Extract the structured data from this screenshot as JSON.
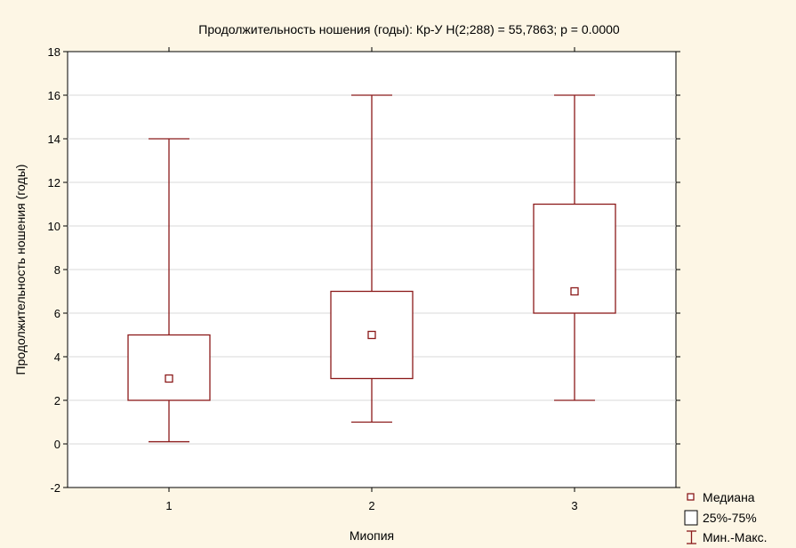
{
  "chart_data": {
    "type": "box",
    "title": "Продолжительность ношения (годы):  Кр-У H(2;288) = 55,7863; p = 0.0000",
    "xlabel": "Миопия",
    "ylabel": "Продолжительность ношения (годы)",
    "ylim": [
      -2,
      18
    ],
    "yticks": [
      -2,
      0,
      2,
      4,
      6,
      8,
      10,
      12,
      14,
      16,
      18
    ],
    "grid": true,
    "categories": [
      "1",
      "2",
      "3"
    ],
    "boxes": [
      {
        "category": "1",
        "min": 0.1,
        "q1": 2,
        "median": 3,
        "q3": 5,
        "max": 14
      },
      {
        "category": "2",
        "min": 1,
        "q1": 3,
        "median": 5,
        "q3": 7,
        "max": 16
      },
      {
        "category": "3",
        "min": 2,
        "q1": 6,
        "median": 7,
        "q3": 11,
        "max": 16
      }
    ],
    "legend": {
      "position": "bottom-right",
      "entries": [
        {
          "label": "Медиана",
          "symbol": "median-marker"
        },
        {
          "label": "25%-75%",
          "symbol": "box"
        },
        {
          "label": "Мин.-Макс.",
          "symbol": "whisker"
        }
      ]
    },
    "colors": {
      "series": "#8b1a1a",
      "background": "#fdf6e5",
      "plot_background": "#ffffff",
      "grid": "#d8d8d8"
    }
  }
}
